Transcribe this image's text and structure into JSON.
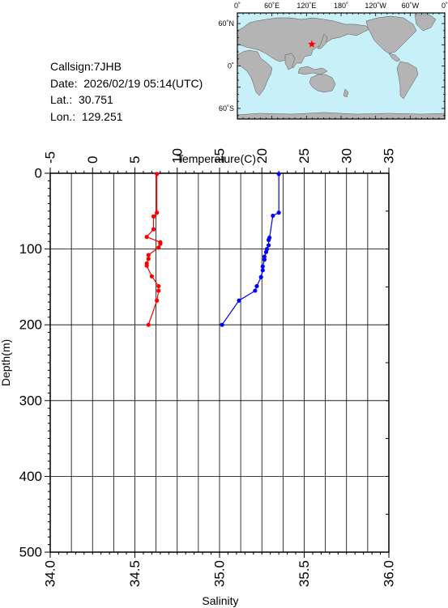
{
  "info": {
    "callsign": "Callsign:7JHB",
    "date": "Date:  2026/02/19 05:14(UTC)",
    "lat": "Lat.:  30.751",
    "lon": "Lon.:  129.251"
  },
  "map": {
    "lon_ticks": [
      "0˚",
      "60˚E",
      "120˚E",
      "180˚",
      "120˚W",
      "60˚W",
      "0˚"
    ],
    "lat_ticks": [
      "60˚N",
      "0˚",
      "60˚S"
    ],
    "station": {
      "lat": 30.751,
      "lon": 129.251
    },
    "ocean_color": "#c8f0f8",
    "land_color": "#b4b4b4",
    "marker_color": "#ff0000"
  },
  "chart_data": {
    "type": "line",
    "xlabel_top": "Temperature(C)",
    "xlabel_bottom": "Salinity",
    "ylabel": "Depth(m)",
    "temperature_range": [
      -5,
      35
    ],
    "salinity_range": [
      34.0,
      36.0
    ],
    "depth_range": [
      0,
      500
    ],
    "temperature_ticks": [
      "-5",
      "0",
      "5",
      "10",
      "15",
      "20",
      "25",
      "30",
      "35"
    ],
    "salinity_ticks": [
      "34.0",
      "34.5",
      "35.0",
      "35.5",
      "36.0"
    ],
    "depth_ticks": [
      "0",
      "100",
      "200",
      "300",
      "400",
      "500"
    ],
    "grid": true,
    "series": [
      {
        "color": "#ff0000",
        "axis": "salinity",
        "points": [
          {
            "depth": 1,
            "value": 34.63
          },
          {
            "depth": 52,
            "value": 34.63
          },
          {
            "depth": 57,
            "value": 34.61
          },
          {
            "depth": 74,
            "value": 34.61
          },
          {
            "depth": 84,
            "value": 34.57
          },
          {
            "depth": 91,
            "value": 34.65
          },
          {
            "depth": 93,
            "value": 34.65
          },
          {
            "depth": 98,
            "value": 34.64
          },
          {
            "depth": 108,
            "value": 34.58
          },
          {
            "depth": 113,
            "value": 34.58
          },
          {
            "depth": 119,
            "value": 34.57
          },
          {
            "depth": 122,
            "value": 34.57
          },
          {
            "depth": 136,
            "value": 34.6
          },
          {
            "depth": 149,
            "value": 34.64
          },
          {
            "depth": 155,
            "value": 34.64
          },
          {
            "depth": 168,
            "value": 34.63
          },
          {
            "depth": 200,
            "value": 34.58
          }
        ]
      },
      {
        "color": "#0000ff",
        "axis": "temperature",
        "points": [
          {
            "depth": 1,
            "value": 22.0
          },
          {
            "depth": 52,
            "value": 22.0
          },
          {
            "depth": 56,
            "value": 21.3
          },
          {
            "depth": 85,
            "value": 20.9
          },
          {
            "depth": 88,
            "value": 20.8
          },
          {
            "depth": 95,
            "value": 20.8
          },
          {
            "depth": 100,
            "value": 20.6
          },
          {
            "depth": 104,
            "value": 20.5
          },
          {
            "depth": 110,
            "value": 20.3
          },
          {
            "depth": 114,
            "value": 20.3
          },
          {
            "depth": 123,
            "value": 20.1
          },
          {
            "depth": 128,
            "value": 20.1
          },
          {
            "depth": 137,
            "value": 19.9
          },
          {
            "depth": 149,
            "value": 19.4
          },
          {
            "depth": 155,
            "value": 19.2
          },
          {
            "depth": 168,
            "value": 17.3
          },
          {
            "depth": 200,
            "value": 15.3
          }
        ]
      }
    ]
  }
}
